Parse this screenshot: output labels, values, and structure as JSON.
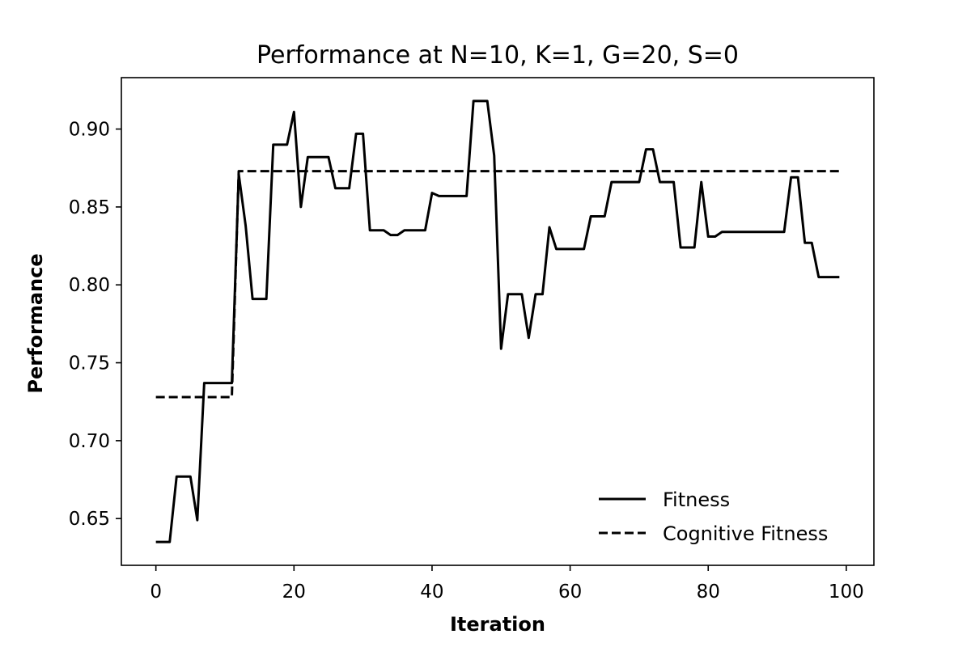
{
  "chart_data": {
    "type": "line",
    "title": "Performance at N=10, K=1, G=20, S=0",
    "xlabel": "Iteration",
    "ylabel": "Performance",
    "xlim": [
      -5,
      104
    ],
    "ylim": [
      0.62,
      0.933
    ],
    "xticks": [
      0,
      20,
      40,
      60,
      80,
      100
    ],
    "yticks": [
      0.65,
      0.7,
      0.75,
      0.8,
      0.85,
      0.9
    ],
    "xtick_labels": [
      "0",
      "20",
      "40",
      "60",
      "80",
      "100"
    ],
    "ytick_labels": [
      "0.65",
      "0.70",
      "0.75",
      "0.80",
      "0.85",
      "0.90"
    ],
    "grid": false,
    "legend_position": "lower-right",
    "series": [
      {
        "name": "Fitness",
        "style": "solid",
        "color": "#000000",
        "x": [
          0,
          1,
          2,
          3,
          4,
          5,
          6,
          7,
          8,
          9,
          10,
          11,
          12,
          13,
          14,
          15,
          16,
          17,
          18,
          19,
          20,
          21,
          22,
          23,
          24,
          25,
          26,
          27,
          28,
          29,
          30,
          31,
          32,
          33,
          34,
          35,
          36,
          37,
          38,
          39,
          40,
          41,
          42,
          43,
          44,
          45,
          46,
          47,
          48,
          49,
          50,
          51,
          52,
          53,
          54,
          55,
          56,
          57,
          58,
          59,
          60,
          61,
          62,
          63,
          64,
          65,
          66,
          67,
          68,
          69,
          70,
          71,
          72,
          73,
          74,
          75,
          76,
          77,
          78,
          79,
          80,
          81,
          82,
          83,
          84,
          85,
          86,
          87,
          88,
          89,
          90,
          91,
          92,
          93,
          94,
          95,
          96,
          97,
          98,
          99
        ],
        "y": [
          0.635,
          0.635,
          0.635,
          0.677,
          0.677,
          0.677,
          0.649,
          0.737,
          0.737,
          0.737,
          0.737,
          0.737,
          0.871,
          0.838,
          0.791,
          0.791,
          0.791,
          0.89,
          0.89,
          0.89,
          0.911,
          0.85,
          0.882,
          0.882,
          0.882,
          0.882,
          0.862,
          0.862,
          0.862,
          0.897,
          0.897,
          0.835,
          0.835,
          0.835,
          0.832,
          0.832,
          0.835,
          0.835,
          0.835,
          0.835,
          0.859,
          0.857,
          0.857,
          0.857,
          0.857,
          0.857,
          0.918,
          0.918,
          0.918,
          0.883,
          0.759,
          0.794,
          0.794,
          0.794,
          0.766,
          0.794,
          0.794,
          0.837,
          0.823,
          0.823,
          0.823,
          0.823,
          0.823,
          0.844,
          0.844,
          0.844,
          0.866,
          0.866,
          0.866,
          0.866,
          0.866,
          0.887,
          0.887,
          0.866,
          0.866,
          0.866,
          0.824,
          0.824,
          0.824,
          0.866,
          0.831,
          0.831,
          0.834,
          0.834,
          0.834,
          0.834,
          0.834,
          0.834,
          0.834,
          0.834,
          0.834,
          0.834,
          0.869,
          0.869,
          0.827,
          0.827,
          0.805,
          0.805,
          0.805,
          0.805
        ]
      },
      {
        "name": "Cognitive Fitness",
        "style": "dashed",
        "color": "#000000",
        "x": [
          0,
          1,
          2,
          3,
          4,
          5,
          6,
          7,
          8,
          9,
          10,
          11,
          12,
          13,
          14,
          15,
          16,
          17,
          18,
          19,
          20,
          21,
          22,
          23,
          24,
          25,
          26,
          27,
          28,
          29,
          30,
          31,
          32,
          33,
          34,
          35,
          36,
          37,
          38,
          39,
          40,
          41,
          42,
          43,
          44,
          45,
          46,
          47,
          48,
          49,
          50,
          51,
          52,
          53,
          54,
          55,
          56,
          57,
          58,
          59,
          60,
          61,
          62,
          63,
          64,
          65,
          66,
          67,
          68,
          69,
          70,
          71,
          72,
          73,
          74,
          75,
          76,
          77,
          78,
          79,
          80,
          81,
          82,
          83,
          84,
          85,
          86,
          87,
          88,
          89,
          90,
          91,
          92,
          93,
          94,
          95,
          96,
          97,
          98,
          99
        ],
        "y": [
          0.728,
          0.728,
          0.728,
          0.728,
          0.728,
          0.728,
          0.728,
          0.728,
          0.728,
          0.728,
          0.728,
          0.728,
          0.873,
          0.873,
          0.873,
          0.873,
          0.873,
          0.873,
          0.873,
          0.873,
          0.873,
          0.873,
          0.873,
          0.873,
          0.873,
          0.873,
          0.873,
          0.873,
          0.873,
          0.873,
          0.873,
          0.873,
          0.873,
          0.873,
          0.873,
          0.873,
          0.873,
          0.873,
          0.873,
          0.873,
          0.873,
          0.873,
          0.873,
          0.873,
          0.873,
          0.873,
          0.873,
          0.873,
          0.873,
          0.873,
          0.873,
          0.873,
          0.873,
          0.873,
          0.873,
          0.873,
          0.873,
          0.873,
          0.873,
          0.873,
          0.873,
          0.873,
          0.873,
          0.873,
          0.873,
          0.873,
          0.873,
          0.873,
          0.873,
          0.873,
          0.873,
          0.873,
          0.873,
          0.873,
          0.873,
          0.873,
          0.873,
          0.873,
          0.873,
          0.873,
          0.873,
          0.873,
          0.873,
          0.873,
          0.873,
          0.873,
          0.873,
          0.873,
          0.873,
          0.873,
          0.873,
          0.873,
          0.873,
          0.873,
          0.873,
          0.873,
          0.873,
          0.873,
          0.873,
          0.873
        ]
      }
    ]
  }
}
